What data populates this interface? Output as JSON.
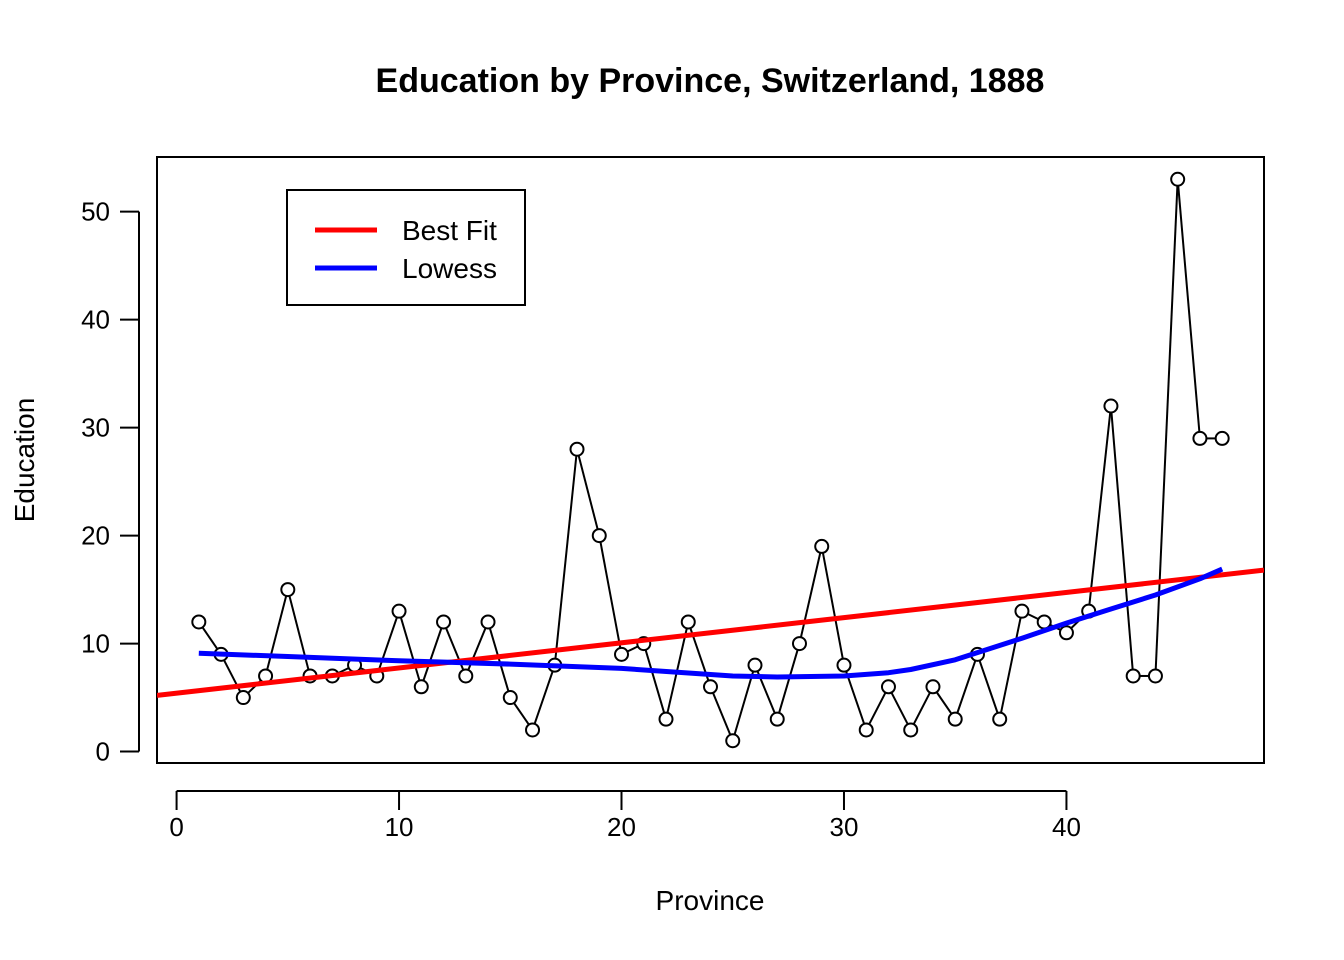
{
  "chart_data": {
    "type": "line",
    "title": "Education by Province, Switzerland, 1888",
    "xlabel": "Province",
    "ylabel": "Education",
    "xlim": [
      -0.88,
      48.88
    ],
    "ylim": [
      -1.06,
      55.06
    ],
    "x_ticks": [
      0,
      10,
      20,
      30,
      40
    ],
    "y_ticks": [
      0,
      10,
      20,
      30,
      40,
      50
    ],
    "grid": false,
    "legend_position": "top-left",
    "series": [
      {
        "name": "",
        "style": "line-with-open-circles",
        "color": "#000000",
        "x": [
          1,
          2,
          3,
          4,
          5,
          6,
          7,
          8,
          9,
          10,
          11,
          12,
          13,
          14,
          15,
          16,
          17,
          18,
          19,
          20,
          21,
          22,
          23,
          24,
          25,
          26,
          27,
          28,
          29,
          30,
          31,
          32,
          33,
          34,
          35,
          36,
          37,
          38,
          39,
          40,
          41,
          42,
          43,
          44,
          45,
          46,
          47
        ],
        "y": [
          12,
          9,
          5,
          7,
          15,
          7,
          7,
          8,
          7,
          13,
          6,
          12,
          7,
          12,
          5,
          2,
          8,
          28,
          20,
          9,
          10,
          3,
          12,
          6,
          1,
          8,
          3,
          10,
          19,
          8,
          2,
          6,
          2,
          6,
          3,
          9,
          3,
          13,
          12,
          11,
          13,
          32,
          7,
          7,
          53,
          29,
          29
        ]
      },
      {
        "name": "Best Fit",
        "style": "line",
        "color": "#ff0000",
        "x": [
          -0.88,
          48.88
        ],
        "y": [
          5.2,
          16.8
        ]
      },
      {
        "name": "Lowess",
        "style": "line",
        "color": "#0000ff",
        "x": [
          1,
          5,
          10,
          15,
          20,
          25,
          27,
          30,
          32,
          33,
          35,
          38,
          40,
          42,
          44,
          46,
          47
        ],
        "y": [
          9.1,
          8.8,
          8.4,
          8.1,
          7.7,
          7.0,
          6.9,
          7.0,
          7.3,
          7.6,
          8.5,
          10.5,
          11.9,
          13.2,
          14.5,
          16.0,
          16.9
        ]
      }
    ],
    "legend": [
      {
        "label": "Best Fit",
        "color": "#ff0000"
      },
      {
        "label": "Lowess",
        "color": "#0000ff"
      }
    ]
  }
}
